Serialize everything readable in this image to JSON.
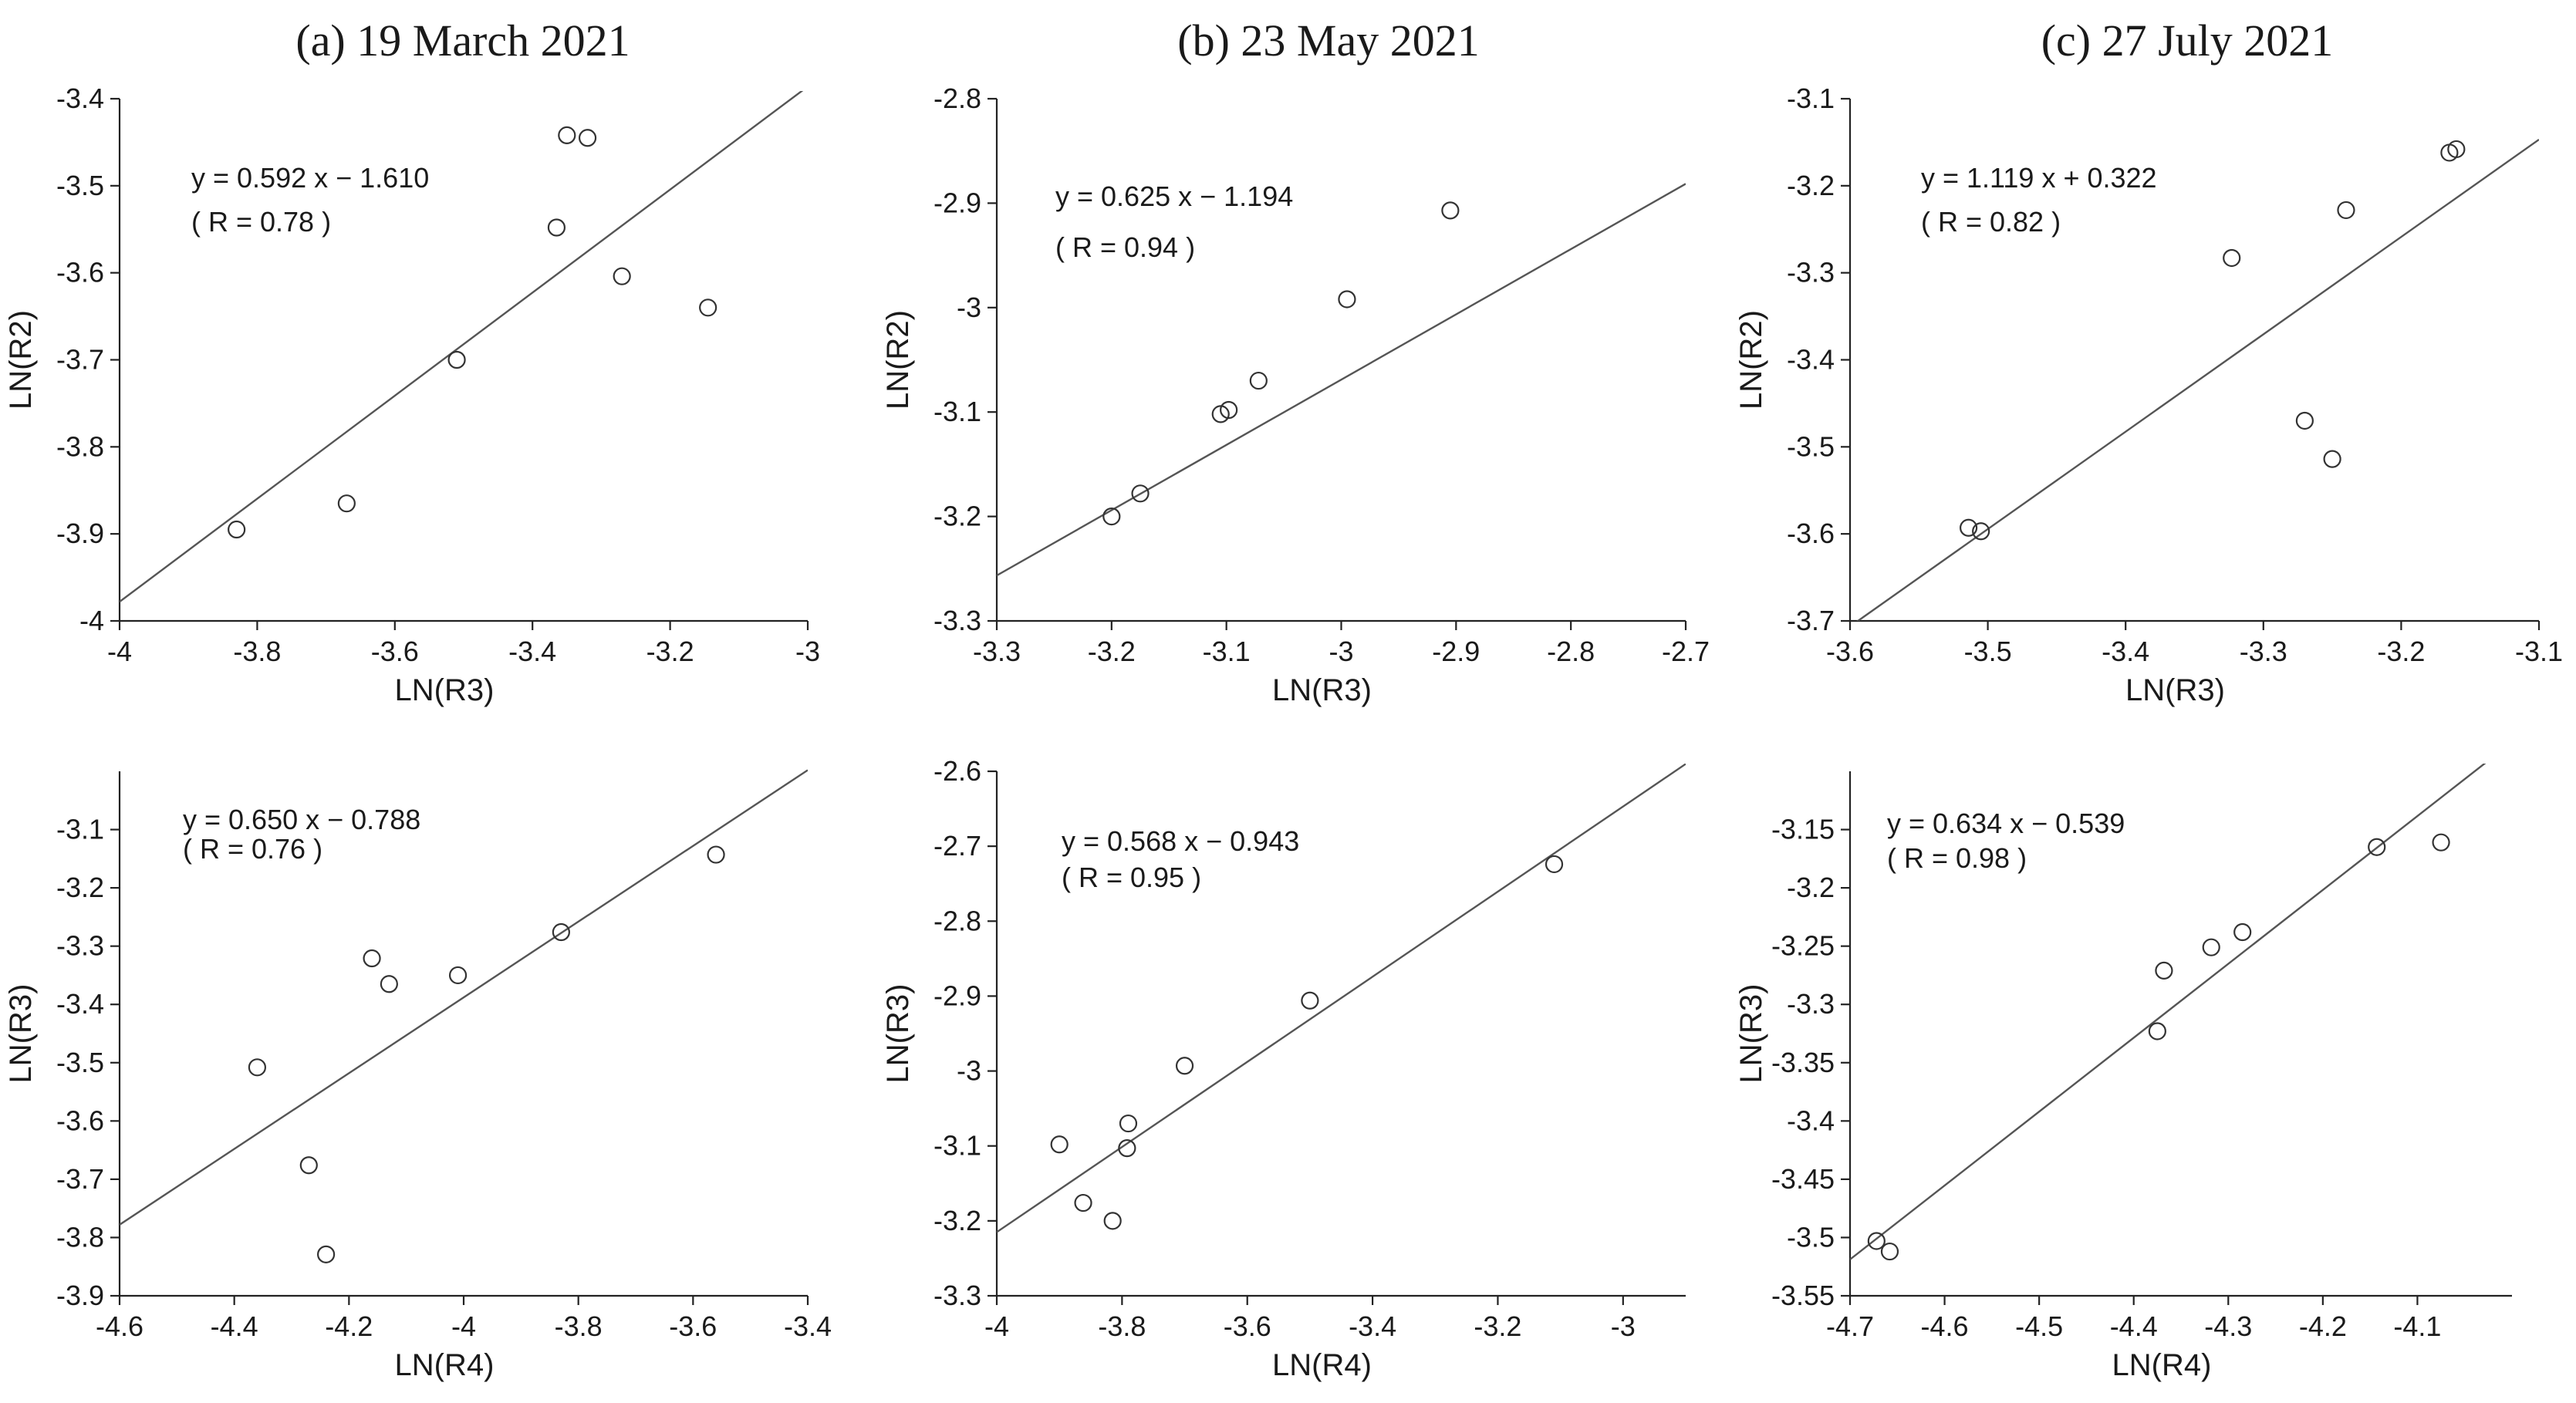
{
  "column_titles": [
    "(a) 19 March 2021",
    "(b) 23 May 2021",
    "(c) 27 July 2021"
  ],
  "chart_data": [
    {
      "type": "scatter",
      "title": "(a) 19 March 2021",
      "xlabel": "LN(R3)",
      "ylabel": "LN(R2)",
      "xlim": [
        -4,
        -3
      ],
      "ylim": [
        -4,
        -3.4
      ],
      "xticks": [
        -4,
        -3.8,
        -3.6,
        -3.4,
        -3.2,
        -3
      ],
      "yticks": [
        -4,
        -3.9,
        -3.8,
        -3.7,
        -3.6,
        -3.5,
        -3.4
      ],
      "points": [
        [
          -3.83,
          -3.895
        ],
        [
          -3.67,
          -3.865
        ],
        [
          -3.51,
          -3.7
        ],
        [
          -3.365,
          -3.548
        ],
        [
          -3.35,
          -3.442
        ],
        [
          -3.32,
          -3.445
        ],
        [
          -3.27,
          -3.604
        ],
        [
          -3.145,
          -3.64
        ]
      ],
      "fit": {
        "slope": 0.592,
        "intercept": -1.61
      },
      "equation": "y = 0.592 x − 1.610",
      "r_text": "( R = 0.78 )"
    },
    {
      "type": "scatter",
      "title": "(b) 23 May 2021",
      "xlabel": "LN(R3)",
      "ylabel": "LN(R2)",
      "xlim": [
        -3.3,
        -2.7
      ],
      "ylim": [
        -3.3,
        -2.8
      ],
      "xticks": [
        -3.3,
        -3.2,
        -3.1,
        -3,
        -2.9,
        -2.8,
        -2.7
      ],
      "yticks": [
        -3.3,
        -3.2,
        -3.1,
        -3,
        -2.9,
        -2.8
      ],
      "points": [
        [
          -3.2,
          -3.2
        ],
        [
          -3.175,
          -3.178
        ],
        [
          -3.105,
          -3.102
        ],
        [
          -3.098,
          -3.098
        ],
        [
          -3.072,
          -3.07
        ],
        [
          -2.995,
          -2.992
        ],
        [
          -2.905,
          -2.907
        ]
      ],
      "fit": {
        "slope": 0.625,
        "intercept": -1.194
      },
      "equation": "y = 0.625 x − 1.194",
      "r_text": "( R = 0.94 )"
    },
    {
      "type": "scatter",
      "title": "(c) 27 July 2021",
      "xlabel": "LN(R3)",
      "ylabel": "LN(R2)",
      "xlim": [
        -3.6,
        -3.1
      ],
      "ylim": [
        -3.7,
        -3.1
      ],
      "xticks": [
        -3.6,
        -3.5,
        -3.4,
        -3.3,
        -3.2,
        -3.1
      ],
      "yticks": [
        -3.7,
        -3.6,
        -3.5,
        -3.4,
        -3.3,
        -3.2,
        -3.1
      ],
      "points": [
        [
          -3.514,
          -3.593
        ],
        [
          -3.505,
          -3.597
        ],
        [
          -3.323,
          -3.283
        ],
        [
          -3.27,
          -3.47
        ],
        [
          -3.25,
          -3.514
        ],
        [
          -3.24,
          -3.228
        ],
        [
          -3.165,
          -3.162
        ],
        [
          -3.16,
          -3.158
        ]
      ],
      "fit": {
        "slope": 1.119,
        "intercept": 0.322
      },
      "equation": "y = 1.119 x + 0.322",
      "r_text": "( R = 0.82 )"
    },
    {
      "type": "scatter",
      "title": "",
      "xlabel": "LN(R4)",
      "ylabel": "LN(R3)",
      "xlim": [
        -4.6,
        -3.4
      ],
      "ylim": [
        -3.9,
        -3.0
      ],
      "xticks": [
        -4.6,
        -4.4,
        -4.2,
        -4,
        -3.8,
        -3.6,
        -3.4
      ],
      "yticks": [
        -3.9,
        -3.8,
        -3.7,
        -3.6,
        -3.5,
        -3.4,
        -3.3,
        -3.2,
        -3.1
      ],
      "points": [
        [
          -4.36,
          -3.508
        ],
        [
          -4.27,
          -3.676
        ],
        [
          -4.24,
          -3.829
        ],
        [
          -4.16,
          -3.321
        ],
        [
          -4.13,
          -3.365
        ],
        [
          -4.01,
          -3.35
        ],
        [
          -3.83,
          -3.276
        ],
        [
          -3.56,
          -3.143
        ]
      ],
      "fit": {
        "slope": 0.65,
        "intercept": -0.788
      },
      "equation": "y = 0.650 x − 0.788",
      "r_text": "( R = 0.76 )"
    },
    {
      "type": "scatter",
      "title": "",
      "xlabel": "LN(R4)",
      "ylabel": "LN(R3)",
      "xlim": [
        -4,
        -2.9
      ],
      "ylim": [
        -3.3,
        -2.6
      ],
      "xticks": [
        -4,
        -3.8,
        -3.6,
        -3.4,
        -3.2,
        -3
      ],
      "yticks": [
        -3.3,
        -3.2,
        -3.1,
        -3,
        -2.9,
        -2.8,
        -2.7,
        -2.6
      ],
      "points": [
        [
          -3.9,
          -3.098
        ],
        [
          -3.862,
          -3.176
        ],
        [
          -3.815,
          -3.2
        ],
        [
          -3.792,
          -3.103
        ],
        [
          -3.79,
          -3.07
        ],
        [
          -3.7,
          -2.993
        ],
        [
          -3.5,
          -2.906
        ],
        [
          -3.11,
          -2.724
        ]
      ],
      "fit": {
        "slope": 0.568,
        "intercept": -0.943
      },
      "equation": "y = 0.568 x − 0.943",
      "r_text": "( R = 0.95 )"
    },
    {
      "type": "scatter",
      "title": "",
      "xlabel": "LN(R4)",
      "ylabel": "LN(R3)",
      "xlim": [
        -4.7,
        -4.0
      ],
      "ylim": [
        -3.55,
        -3.1
      ],
      "xticks": [
        -4.7,
        -4.6,
        -4.5,
        -4.4,
        -4.3,
        -4.2,
        -4.1
      ],
      "yticks": [
        -3.55,
        -3.5,
        -3.45,
        -3.4,
        -3.35,
        -3.3,
        -3.25,
        -3.2,
        -3.15
      ],
      "points": [
        [
          -4.672,
          -3.503
        ],
        [
          -4.658,
          -3.512
        ],
        [
          -4.375,
          -3.323
        ],
        [
          -4.368,
          -3.271
        ],
        [
          -4.318,
          -3.251
        ],
        [
          -4.285,
          -3.238
        ],
        [
          -4.143,
          -3.165
        ],
        [
          -4.075,
          -3.161
        ]
      ],
      "fit": {
        "slope": 0.634,
        "intercept": -0.539
      },
      "equation": "y = 0.634 x − 0.539",
      "r_text": "( R = 0.98 )"
    }
  ]
}
